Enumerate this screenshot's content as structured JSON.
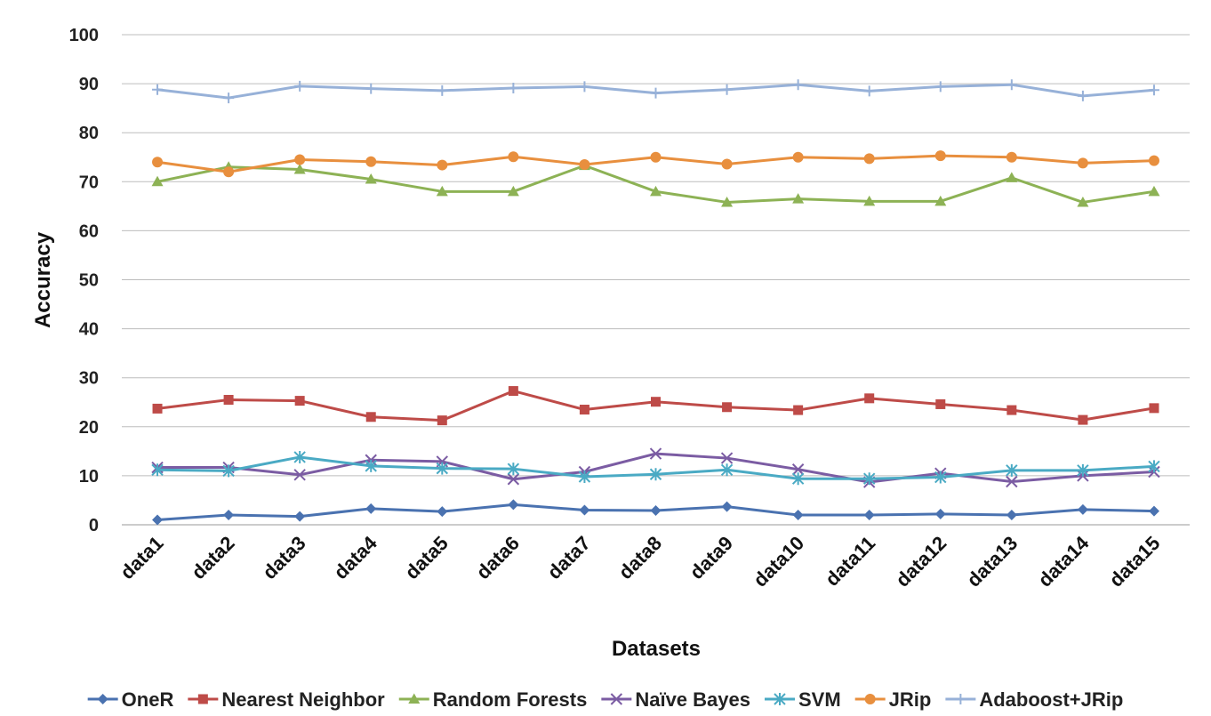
{
  "chart_data": {
    "type": "line",
    "xlabel": "Datasets",
    "ylabel": "Accuracy",
    "ylim": [
      0,
      100
    ],
    "yticks": [
      0,
      10,
      20,
      30,
      40,
      50,
      60,
      70,
      80,
      90,
      100
    ],
    "grid": true,
    "legend_position": "bottom",
    "categories": [
      "data1",
      "data2",
      "data3",
      "data4",
      "data5",
      "data6",
      "data7",
      "data8",
      "data9",
      "data10",
      "data11",
      "data12",
      "data13",
      "data14",
      "data15"
    ],
    "series": [
      {
        "name": "OneR",
        "color": "#4a72b0",
        "marker": "diamond",
        "values": [
          1,
          2,
          1.7,
          3.3,
          2.7,
          4.1,
          3,
          2.9,
          3.7,
          2,
          2,
          2.2,
          2,
          3.1,
          2.8
        ]
      },
      {
        "name": "Nearest Neighbor",
        "color": "#be4b48",
        "marker": "square",
        "values": [
          23.7,
          25.5,
          25.3,
          22,
          21.3,
          27.3,
          23.5,
          25.1,
          24,
          23.4,
          25.8,
          24.6,
          23.4,
          21.4,
          23.8
        ]
      },
      {
        "name": "Random Forests",
        "color": "#8db255",
        "marker": "triangle",
        "values": [
          70,
          73,
          72.5,
          70.5,
          68,
          68,
          73.3,
          68,
          65.8,
          66.5,
          66,
          66,
          70.8,
          65.8,
          68
        ]
      },
      {
        "name": "Naïve Bayes",
        "color": "#7b5ca3",
        "marker": "x",
        "values": [
          11.7,
          11.7,
          10.2,
          13.2,
          12.9,
          9.3,
          10.8,
          14.5,
          13.6,
          11.3,
          8.7,
          10.5,
          8.8,
          10,
          10.8
        ]
      },
      {
        "name": "SVM",
        "color": "#4aaac4",
        "marker": "star",
        "values": [
          11.2,
          11,
          13.8,
          12,
          11.5,
          11.4,
          9.8,
          10.3,
          11.2,
          9.4,
          9.4,
          9.7,
          11.1,
          11.1,
          11.9
        ]
      },
      {
        "name": "JRip",
        "color": "#e88f3e",
        "marker": "circle",
        "values": [
          74,
          72,
          74.5,
          74.1,
          73.4,
          75.1,
          73.5,
          75,
          73.6,
          75,
          74.7,
          75.3,
          75,
          73.8,
          74.3
        ]
      },
      {
        "name": "Adaboost+JRip",
        "color": "#97b1d8",
        "marker": "plus",
        "values": [
          88.8,
          87.1,
          89.5,
          89,
          88.6,
          89.1,
          89.4,
          88.1,
          88.8,
          89.8,
          88.5,
          89.4,
          89.8,
          87.5,
          88.7
        ]
      }
    ]
  }
}
